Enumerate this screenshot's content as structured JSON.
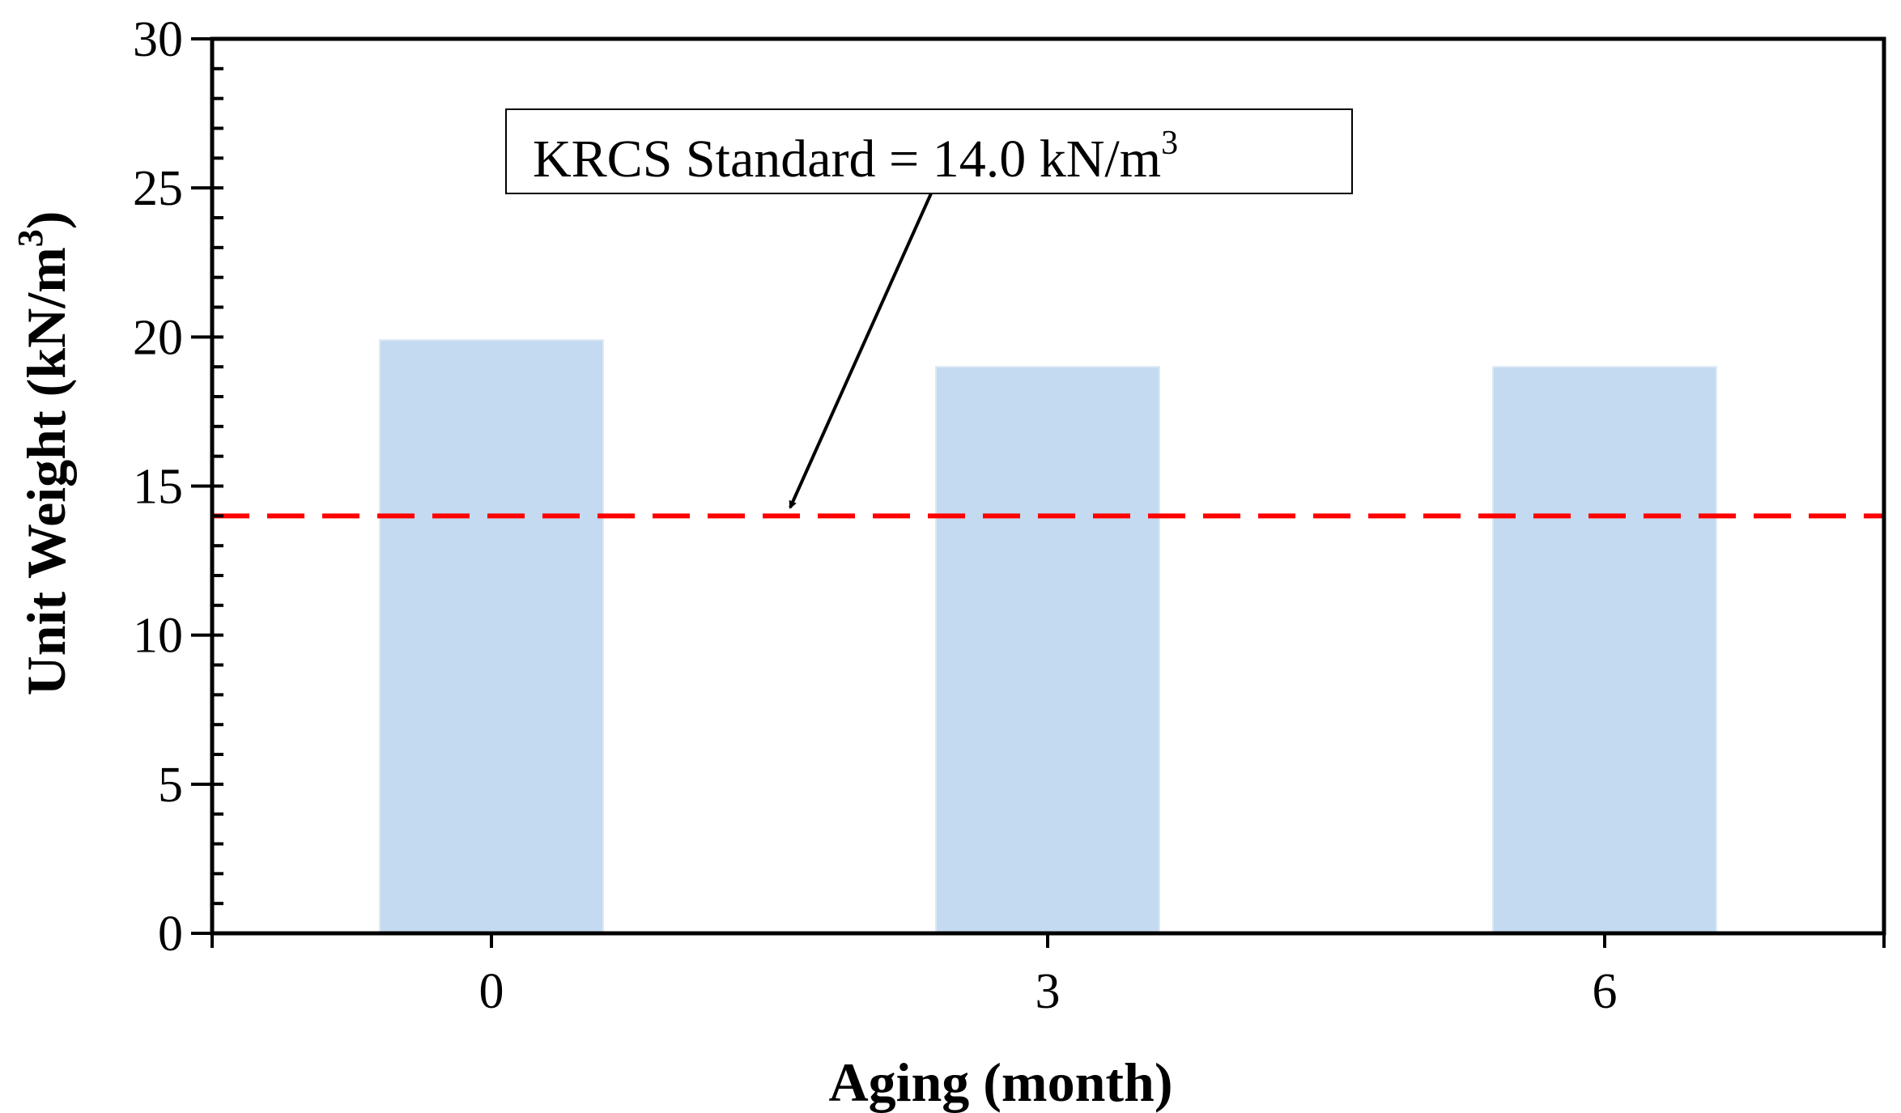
{
  "chart_data": {
    "type": "bar",
    "categories": [
      "0",
      "3",
      "6"
    ],
    "values": [
      19.9,
      19.0,
      19.0
    ],
    "bar_color": "#c3daf0",
    "xlabel": "Aging (month)",
    "ylabel_main": "Unit Weight (kN/m",
    "ylabel_sup": "3",
    "ylabel_close": ")",
    "ylim": [
      0,
      30
    ],
    "yticks": [
      "0",
      "5",
      "10",
      "15",
      "20",
      "25",
      "30"
    ],
    "reference_line": {
      "value": 14.0,
      "color": "#ff0000",
      "style": "dashed"
    },
    "annotation": {
      "text_main": "KRCS Standard = 14.0 kN/m",
      "text_sup": "3"
    }
  }
}
